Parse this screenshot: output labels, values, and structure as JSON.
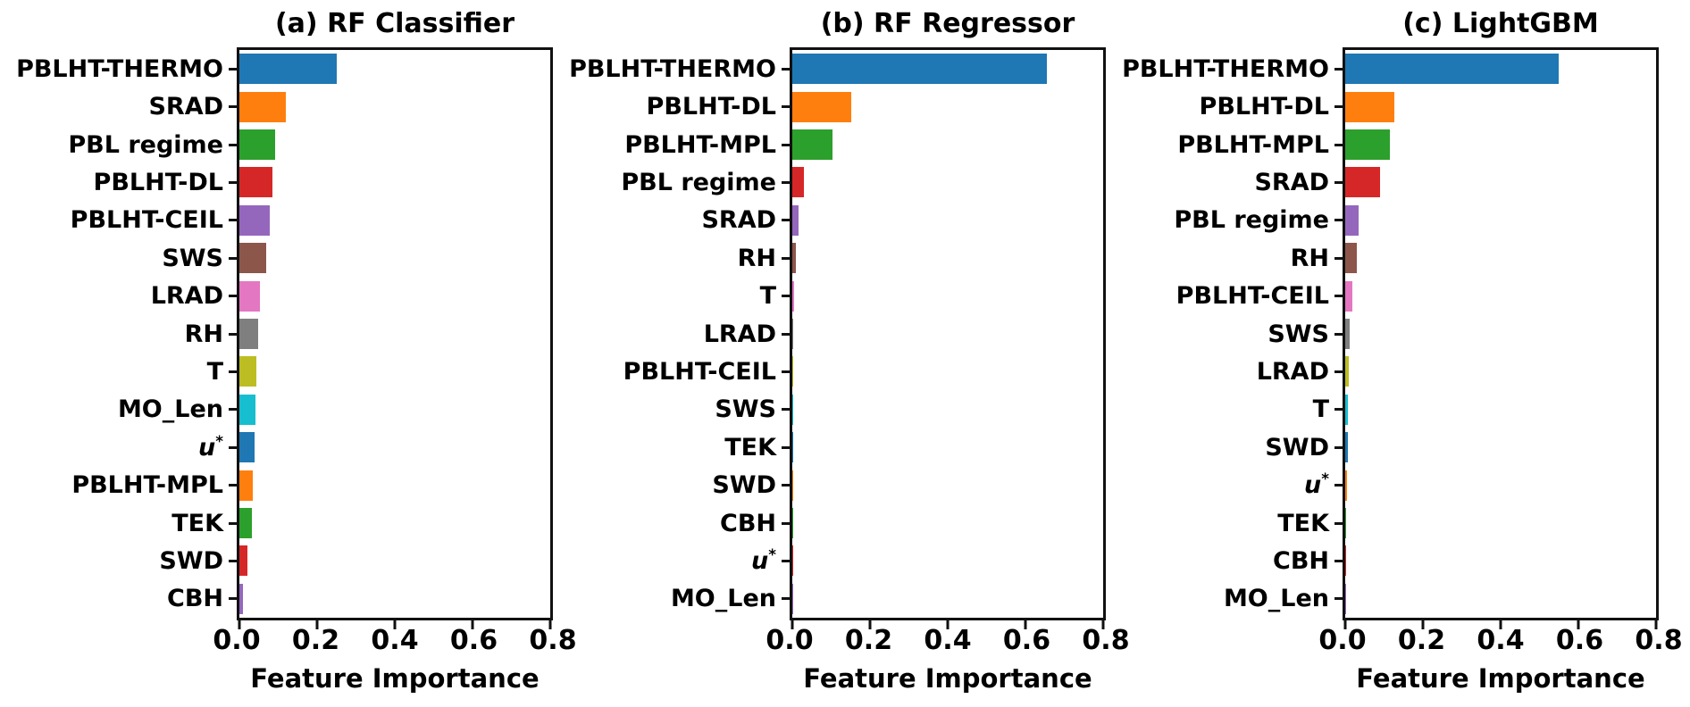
{
  "figure": {
    "xlabel": "Feature Importance",
    "x_tick_labels": [
      "0.0",
      "0.2",
      "0.4",
      "0.6",
      "0.8"
    ],
    "bar_colors": [
      "#1f77b4",
      "#ff7f0e",
      "#2ca02c",
      "#d62728",
      "#9467bd",
      "#8c564b",
      "#e377c2",
      "#7f7f7f",
      "#bcbd22",
      "#17becf"
    ],
    "frame_color": "#111111",
    "text_color": "#000000",
    "background_color": "#ffffff"
  },
  "chart_data": [
    {
      "type": "bar",
      "orientation": "horizontal",
      "title": "(a) RF Classifier",
      "xlabel": "Feature Importance",
      "xlim": [
        0,
        0.8
      ],
      "x_ticks": [
        0.0,
        0.2,
        0.4,
        0.6,
        0.8
      ],
      "grid": false,
      "legend": false,
      "categories": [
        "PBLHT-THERMO",
        "SRAD",
        "PBL regime",
        "PBLHT-DL",
        "PBLHT-CEIL",
        "SWS",
        "LRAD",
        "RH",
        "T",
        "MO_Len",
        "u*",
        "PBLHT-MPL",
        "TEK",
        "SWD",
        "CBH"
      ],
      "values": [
        0.25,
        0.12,
        0.091,
        0.086,
        0.079,
        0.068,
        0.052,
        0.048,
        0.043,
        0.041,
        0.038,
        0.035,
        0.033,
        0.02,
        0.009
      ]
    },
    {
      "type": "bar",
      "orientation": "horizontal",
      "title": "(b) RF Regressor",
      "xlabel": "Feature Importance",
      "xlim": [
        0,
        0.8
      ],
      "x_ticks": [
        0.0,
        0.2,
        0.4,
        0.6,
        0.8
      ],
      "grid": false,
      "legend": false,
      "categories": [
        "PBLHT-THERMO",
        "PBLHT-DL",
        "PBLHT-MPL",
        "PBL regime",
        "SRAD",
        "RH",
        "T",
        "LRAD",
        "PBLHT-CEIL",
        "SWS",
        "TEK",
        "SWD",
        "CBH",
        "u*",
        "MO_Len"
      ],
      "values": [
        0.655,
        0.152,
        0.103,
        0.03,
        0.016,
        0.009,
        0.005,
        0.003,
        0.002,
        0.002,
        0.0015,
        0.001,
        0.001,
        0.0005,
        0.0005
      ]
    },
    {
      "type": "bar",
      "orientation": "horizontal",
      "title": "(c) LightGBM",
      "xlabel": "Feature Importance",
      "xlim": [
        0,
        0.8
      ],
      "x_ticks": [
        0.0,
        0.2,
        0.4,
        0.6,
        0.8
      ],
      "grid": false,
      "legend": false,
      "categories": [
        "PBLHT-THERMO",
        "PBLHT-DL",
        "PBLHT-MPL",
        "SRAD",
        "PBL regime",
        "RH",
        "PBLHT-CEIL",
        "SWS",
        "LRAD",
        "T",
        "SWD",
        "u*",
        "TEK",
        "CBH",
        "MO_Len"
      ],
      "values": [
        0.55,
        0.127,
        0.116,
        0.09,
        0.034,
        0.031,
        0.018,
        0.011,
        0.01,
        0.008,
        0.006,
        0.004,
        0.003,
        0.001,
        0.001
      ]
    }
  ]
}
